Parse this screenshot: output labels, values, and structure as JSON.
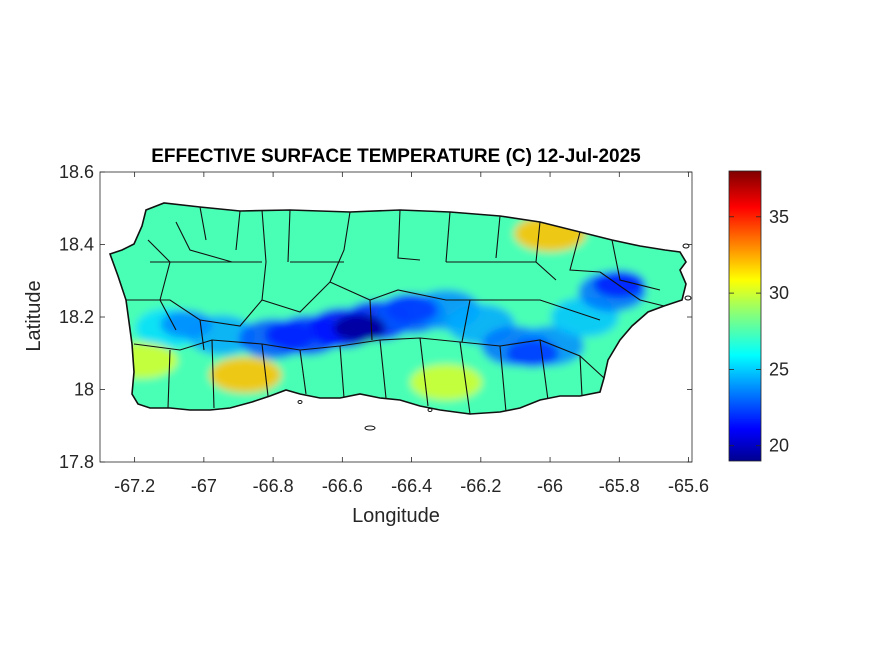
{
  "chart_data": {
    "type": "heatmap",
    "title": "EFFECTIVE SURFACE TEMPERATURE (C) 12-Jul-2025",
    "xlabel": "Longitude",
    "ylabel": "Latitude",
    "xlim": [
      -67.3,
      -65.59
    ],
    "ylim": [
      17.8,
      18.6
    ],
    "xticks": [
      -67.2,
      -67,
      -66.8,
      -66.6,
      -66.4,
      -66.2,
      -66,
      -65.8,
      -65.6
    ],
    "xtick_labels": [
      "-67.2",
      "-67",
      "-66.8",
      "-66.6",
      "-66.4",
      "-66.2",
      "-66",
      "-65.8",
      "-65.6"
    ],
    "yticks": [
      17.8,
      18,
      18.2,
      18.4,
      18.6
    ],
    "ytick_labels": [
      "17.8",
      "18",
      "18.2",
      "18.4",
      "18.6"
    ],
    "colorbar": {
      "colormap": "jet",
      "range": [
        19,
        38
      ],
      "ticks": [
        20,
        25,
        30,
        35
      ],
      "tick_labels": [
        "20",
        "25",
        "30",
        "35"
      ]
    },
    "grid": false,
    "features": {
      "region": "Puerto Rico island with municipality boundaries (black lines)",
      "cool_zones": [
        {
          "lon": -66.55,
          "lat": 18.17,
          "value": 19.5
        },
        {
          "lon": -66.75,
          "lat": 18.15,
          "value": 22
        },
        {
          "lon": -66.4,
          "lat": 18.22,
          "value": 22.5
        },
        {
          "lon": -66.05,
          "lat": 18.1,
          "value": 22.5
        },
        {
          "lon": -65.8,
          "lat": 18.29,
          "value": 22
        },
        {
          "lon": -67.05,
          "lat": 18.18,
          "value": 24
        }
      ],
      "warm_zones": [
        {
          "lon": -66.88,
          "lat": 18.04,
          "value": 32
        },
        {
          "lon": -66.0,
          "lat": 18.43,
          "value": 32
        },
        {
          "lon": -66.3,
          "lat": 18.02,
          "value": 30
        },
        {
          "lon": -67.18,
          "lat": 18.08,
          "value": 30
        }
      ],
      "baseline_value": 27.5
    }
  }
}
